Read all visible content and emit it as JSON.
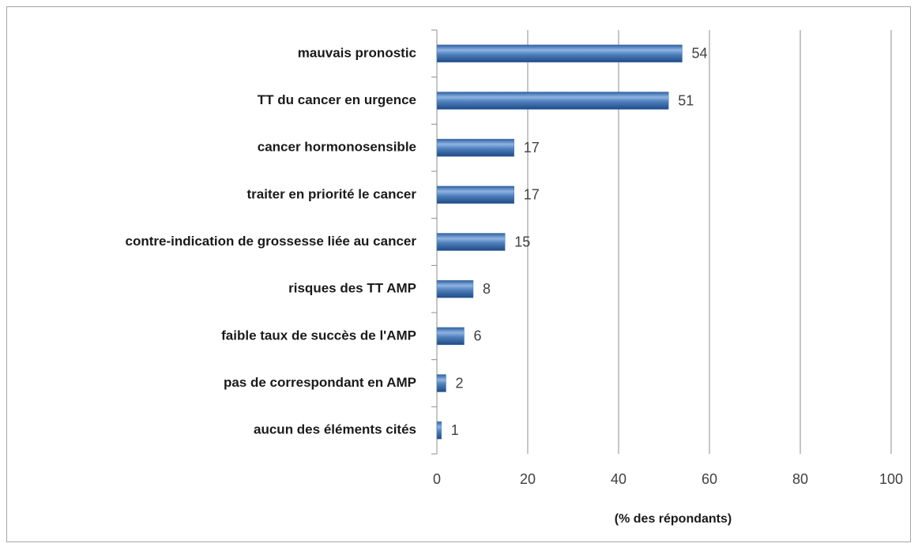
{
  "chart_data": {
    "type": "bar",
    "orientation": "horizontal",
    "x_label": "(% des répondants)",
    "categories": [
      "mauvais pronostic",
      "TT du cancer en urgence",
      "cancer hormonosensible",
      "traiter en priorité le cancer",
      "contre-indication de grossesse liée au cancer",
      "risques  des TT AMP",
      "faible taux de succès de l'AMP",
      "pas de correspondant en AMP",
      "aucun des éléments cités"
    ],
    "values": [
      54,
      51,
      17,
      17,
      15,
      8,
      6,
      2,
      1
    ],
    "color": "#4f81bd",
    "xlim": [
      0,
      100
    ],
    "xticks": [
      0,
      20,
      40,
      60,
      80,
      100
    ],
    "grid": true
  }
}
